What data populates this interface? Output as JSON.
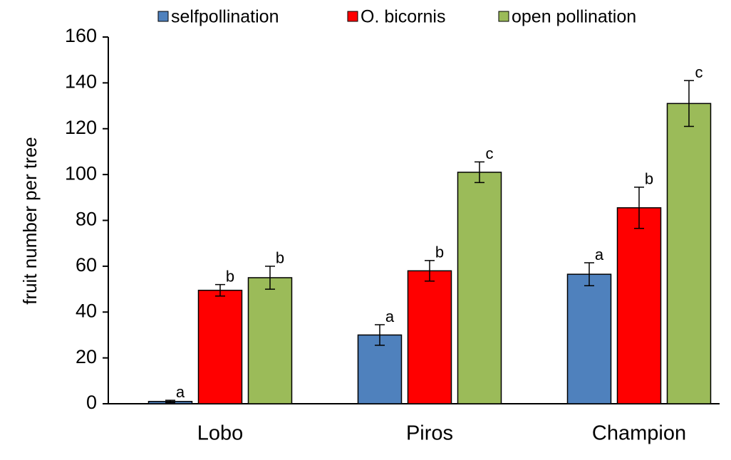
{
  "chart_data": {
    "type": "bar",
    "y_label": "fruit number per tree",
    "categories": [
      "Lobo",
      "Piros",
      "Champion"
    ],
    "series": [
      {
        "name": "selfpollination",
        "color": "#4f81bd",
        "values": [
          1,
          30,
          56.5
        ],
        "errors": [
          0.5,
          4.5,
          5
        ],
        "letters": [
          "a",
          "a",
          "a"
        ]
      },
      {
        "name": "O. bicornis",
        "color": "#ff0000",
        "values": [
          49.5,
          58,
          85.5
        ],
        "errors": [
          2.5,
          4.5,
          9
        ],
        "letters": [
          "b",
          "b",
          "b"
        ]
      },
      {
        "name": "open pollination",
        "color": "#9bbb59",
        "values": [
          55,
          101,
          131
        ],
        "errors": [
          5,
          4.5,
          10
        ],
        "letters": [
          "b",
          "c",
          "c"
        ]
      }
    ],
    "ylim": [
      0,
      160
    ],
    "yticks": [
      0,
      20,
      40,
      60,
      80,
      100,
      120,
      140,
      160
    ]
  }
}
